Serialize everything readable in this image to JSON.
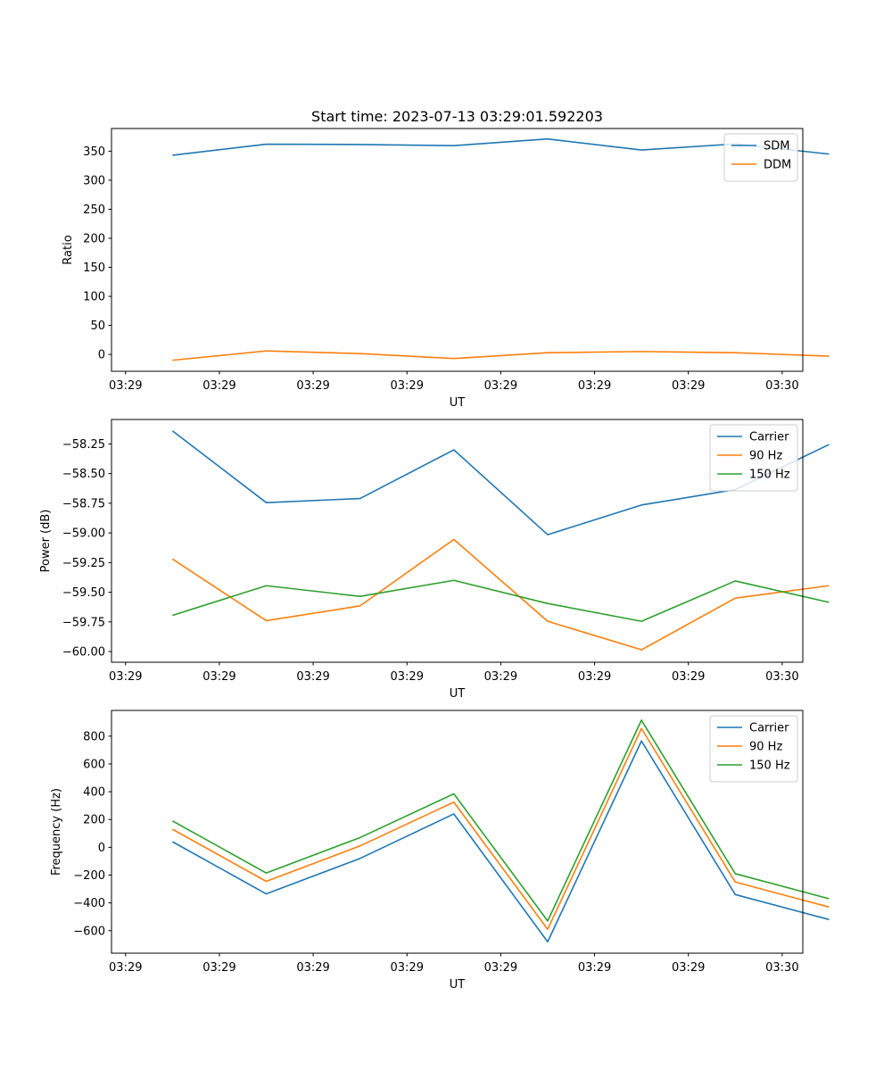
{
  "chart_data": [
    {
      "type": "line",
      "title": "Start time: 2023-07-13 03:29:01.592203",
      "xlabel": "UT",
      "ylabel": "Ratio",
      "x_tick_labels": [
        "03:29",
        "03:29",
        "03:29",
        "03:29",
        "03:29",
        "03:29",
        "03:29",
        "03:30"
      ],
      "x_tick_positions": [
        -0.5,
        0.5,
        1.5,
        2.5,
        3.5,
        4.5,
        5.5,
        6.5
      ],
      "x": [
        0,
        1,
        2,
        3,
        4,
        5,
        6,
        7
      ],
      "xlim": [
        -0.65,
        6.72
      ],
      "ylim": [
        -29,
        389
      ],
      "yticks": [
        0,
        50,
        100,
        150,
        200,
        250,
        300,
        350
      ],
      "ytick_labels": [
        "0",
        "50",
        "100",
        "150",
        "200",
        "250",
        "300",
        "350"
      ],
      "legend_position": "top-right",
      "series": [
        {
          "name": "SDM",
          "color": "#1f77b4",
          "values": [
            343,
            362,
            361.5,
            359.5,
            371,
            352,
            362.5,
            345
          ]
        },
        {
          "name": "DDM",
          "color": "#ff7f0e",
          "values": [
            -10,
            6,
            1.5,
            -7,
            3,
            5,
            3,
            -3
          ]
        }
      ]
    },
    {
      "type": "line",
      "title": "",
      "xlabel": "UT",
      "ylabel": "Power (dB)",
      "x_tick_labels": [
        "03:29",
        "03:29",
        "03:29",
        "03:29",
        "03:29",
        "03:29",
        "03:29",
        "03:30"
      ],
      "x_tick_positions": [
        -0.5,
        0.5,
        1.5,
        2.5,
        3.5,
        4.5,
        5.5,
        6.5
      ],
      "x": [
        0,
        1,
        2,
        3,
        4,
        5,
        6,
        7
      ],
      "xlim": [
        -0.65,
        6.72
      ],
      "ylim": [
        -60.09,
        -58.044
      ],
      "yticks": [
        -60.0,
        -59.75,
        -59.5,
        -59.25,
        -59.0,
        -58.75,
        -58.5,
        -58.25
      ],
      "ytick_labels": [
        "−60.00",
        "−59.75",
        "−59.50",
        "−59.25",
        "−59.00",
        "−58.75",
        "−58.50",
        "−58.25"
      ],
      "legend_position": "top-right",
      "series": [
        {
          "name": "Carrier",
          "color": "#1f77b4",
          "values": [
            -58.14,
            -58.745,
            -58.71,
            -58.3,
            -59.015,
            -58.765,
            -58.635,
            -58.255
          ]
        },
        {
          "name": "90 Hz",
          "color": "#ff7f0e",
          "values": [
            -59.22,
            -59.74,
            -59.615,
            -59.055,
            -59.745,
            -59.985,
            -59.55,
            -59.445
          ]
        },
        {
          "name": "150 Hz",
          "color": "#2ca02c",
          "values": [
            -59.695,
            -59.445,
            -59.535,
            -59.4,
            -59.595,
            -59.745,
            -59.405,
            -59.585
          ]
        }
      ]
    },
    {
      "type": "line",
      "title": "",
      "xlabel": "UT",
      "ylabel": "Frequency (Hz)",
      "x_tick_labels": [
        "03:29",
        "03:29",
        "03:29",
        "03:29",
        "03:29",
        "03:29",
        "03:29",
        "03:30"
      ],
      "x_tick_positions": [
        -0.5,
        0.5,
        1.5,
        2.5,
        3.5,
        4.5,
        5.5,
        6.5
      ],
      "x": [
        0,
        1,
        2,
        3,
        4,
        5,
        6,
        7
      ],
      "xlim": [
        -0.65,
        6.72
      ],
      "ylim": [
        -762,
        985
      ],
      "yticks": [
        -600,
        -400,
        -200,
        0,
        200,
        400,
        600,
        800
      ],
      "ytick_labels": [
        "−600",
        "−400",
        "−200",
        "0",
        "200",
        "400",
        "600",
        "800"
      ],
      "legend_position": "top-right",
      "series": [
        {
          "name": "Carrier",
          "color": "#1f77b4",
          "values": [
            40,
            -335,
            -80,
            240,
            -680,
            765,
            -340,
            -520
          ]
        },
        {
          "name": "90 Hz",
          "color": "#ff7f0e",
          "values": [
            130,
            -245,
            10,
            325,
            -590,
            855,
            -250,
            -430
          ]
        },
        {
          "name": "150 Hz",
          "color": "#2ca02c",
          "values": [
            190,
            -185,
            70,
            385,
            -530,
            915,
            -190,
            -370
          ]
        }
      ]
    }
  ]
}
